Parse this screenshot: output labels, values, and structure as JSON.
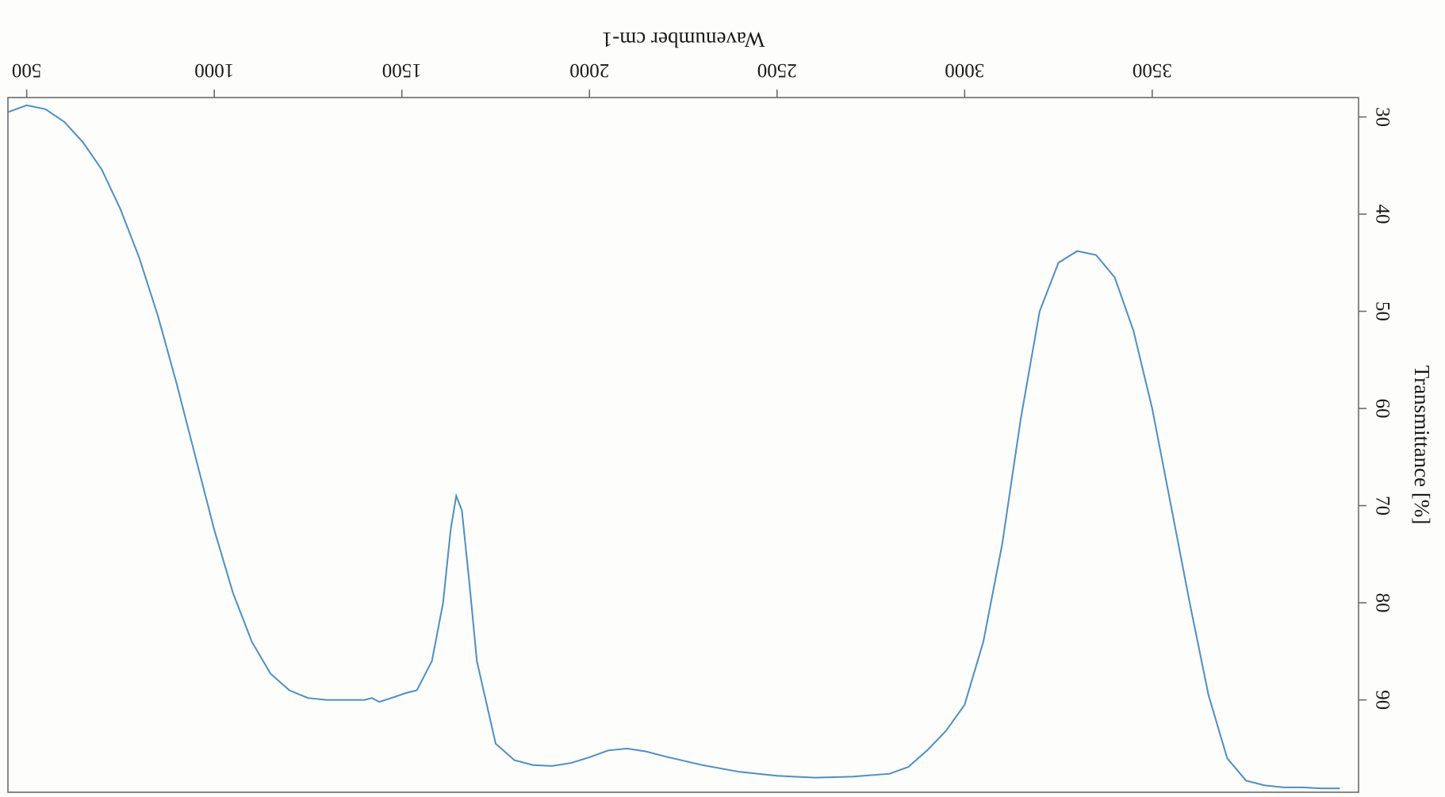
{
  "chart_data": {
    "type": "line",
    "orientation": "rotated 180 degrees (scanned upside down)",
    "title": "",
    "xlabel": "Wavenumber cm-1",
    "ylabel": "Transmittance [%]",
    "xlim": [
      450,
      4050
    ],
    "ylim": [
      28,
      99.5
    ],
    "x_ticks": [
      500,
      1000,
      1500,
      2000,
      2500,
      3000,
      3500
    ],
    "y_ticks": [
      30,
      40,
      50,
      60,
      70,
      80,
      90
    ],
    "grid": false,
    "legend": "none",
    "line_color": "#4a90c8",
    "series": [
      {
        "name": "",
        "points": [
          [
            450,
            29.5
          ],
          [
            500,
            28.8
          ],
          [
            550,
            29.2
          ],
          [
            600,
            30.5
          ],
          [
            650,
            32.6
          ],
          [
            700,
            35.4
          ],
          [
            750,
            39.5
          ],
          [
            800,
            44.5
          ],
          [
            850,
            50.5
          ],
          [
            900,
            57.5
          ],
          [
            950,
            65.0
          ],
          [
            1000,
            72.5
          ],
          [
            1050,
            79.0
          ],
          [
            1100,
            84.0
          ],
          [
            1150,
            87.3
          ],
          [
            1200,
            89.0
          ],
          [
            1250,
            89.8
          ],
          [
            1300,
            90.0
          ],
          [
            1350,
            90.0
          ],
          [
            1400,
            90.0
          ],
          [
            1420,
            89.8
          ],
          [
            1440,
            90.2
          ],
          [
            1480,
            89.7
          ],
          [
            1510,
            89.3
          ],
          [
            1540,
            89.0
          ],
          [
            1580,
            86.0
          ],
          [
            1610,
            80.0
          ],
          [
            1630,
            72.5
          ],
          [
            1645,
            69.0
          ],
          [
            1660,
            70.5
          ],
          [
            1680,
            78.0
          ],
          [
            1700,
            86.0
          ],
          [
            1750,
            94.5
          ],
          [
            1800,
            96.2
          ],
          [
            1850,
            96.7
          ],
          [
            1900,
            96.8
          ],
          [
            1950,
            96.5
          ],
          [
            2000,
            95.9
          ],
          [
            2050,
            95.2
          ],
          [
            2100,
            95.0
          ],
          [
            2150,
            95.3
          ],
          [
            2200,
            95.8
          ],
          [
            2300,
            96.7
          ],
          [
            2400,
            97.4
          ],
          [
            2500,
            97.8
          ],
          [
            2600,
            98.0
          ],
          [
            2700,
            97.9
          ],
          [
            2800,
            97.6
          ],
          [
            2850,
            96.9
          ],
          [
            2900,
            95.2
          ],
          [
            2950,
            93.2
          ],
          [
            3000,
            90.5
          ],
          [
            3050,
            84.0
          ],
          [
            3100,
            74.0
          ],
          [
            3150,
            61.0
          ],
          [
            3200,
            50.0
          ],
          [
            3250,
            45.0
          ],
          [
            3300,
            43.8
          ],
          [
            3350,
            44.2
          ],
          [
            3400,
            46.5
          ],
          [
            3450,
            52.0
          ],
          [
            3500,
            60.0
          ],
          [
            3550,
            70.0
          ],
          [
            3600,
            80.0
          ],
          [
            3650,
            89.5
          ],
          [
            3700,
            96.0
          ],
          [
            3750,
            98.3
          ],
          [
            3800,
            98.8
          ],
          [
            3850,
            99.0
          ],
          [
            3900,
            99.0
          ],
          [
            3950,
            99.1
          ],
          [
            4000,
            99.1
          ]
        ]
      }
    ]
  }
}
